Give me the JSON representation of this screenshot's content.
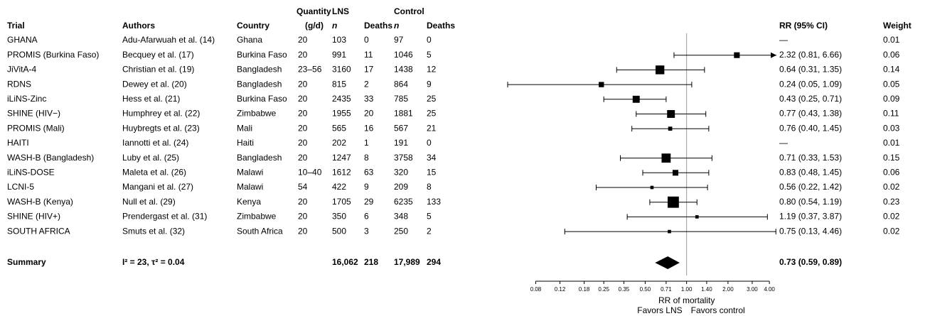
{
  "chart_data": {
    "type": "forest",
    "header": {
      "quantity": "Quantity",
      "lns": "LNS",
      "control": "Control",
      "trial": "Trial",
      "authors": "Authors",
      "country": "Country",
      "unit": "(g/d)",
      "n": "n",
      "deaths": "Deaths",
      "rr": "RR (95% CI)",
      "weight": "Weight"
    },
    "rows": [
      {
        "trial": "GHANA",
        "authors": "Adu-Afarwuah et al. (14)",
        "country": "Ghana",
        "quantity": 20,
        "lns_n": 103,
        "lns_deaths": 0,
        "control_n": 97,
        "control_deaths": 0,
        "rr": null,
        "lower": null,
        "upper": null,
        "rr_label": "—",
        "weight": 0.01
      },
      {
        "trial": "PROMIS (Burkina Faso)",
        "authors": "Becquey et al. (17)",
        "country": "Burkina Faso",
        "quantity": 20,
        "lns_n": 991,
        "lns_deaths": 11,
        "control_n": 1046,
        "control_deaths": 5,
        "rr": 2.32,
        "lower": 0.81,
        "upper": 6.66,
        "rr_label": "2.32 (0.81, 6.66)",
        "weight": 0.06
      },
      {
        "trial": "JiVitA-4",
        "authors": "Christian et al. (19)",
        "country": "Bangladesh",
        "quantity": "23–56",
        "lns_n": 3160,
        "lns_deaths": 17,
        "control_n": 1438,
        "control_deaths": 12,
        "rr": 0.64,
        "lower": 0.31,
        "upper": 1.35,
        "rr_label": "0.64 (0.31, 1.35)",
        "weight": 0.14
      },
      {
        "trial": "RDNS",
        "authors": "Dewey et al. (20)",
        "country": "Bangladesh",
        "quantity": 20,
        "lns_n": 815,
        "lns_deaths": 2,
        "control_n": 864,
        "control_deaths": 9,
        "rr": 0.24,
        "lower": 0.05,
        "upper": 1.09,
        "rr_label": "0.24 (0.05, 1.09)",
        "weight": 0.05
      },
      {
        "trial": "iLiNS-Zinc",
        "authors": "Hess et al. (21)",
        "country": "Burkina Faso",
        "quantity": 20,
        "lns_n": 2435,
        "lns_deaths": 33,
        "control_n": 785,
        "control_deaths": 25,
        "rr": 0.43,
        "lower": 0.25,
        "upper": 0.71,
        "rr_label": "0.43 (0.25, 0.71)",
        "weight": 0.09
      },
      {
        "trial": "SHINE (HIV−)",
        "authors": "Humphrey et al. (22)",
        "country": "Zimbabwe",
        "quantity": 20,
        "lns_n": 1955,
        "lns_deaths": 20,
        "control_n": 1881,
        "control_deaths": 25,
        "rr": 0.77,
        "lower": 0.43,
        "upper": 1.38,
        "rr_label": "0.77 (0.43, 1.38)",
        "weight": 0.11
      },
      {
        "trial": "PROMIS (Mali)",
        "authors": "Huybregts et al. (23)",
        "country": "Mali",
        "quantity": 20,
        "lns_n": 565,
        "lns_deaths": 16,
        "control_n": 567,
        "control_deaths": 21,
        "rr": 0.76,
        "lower": 0.4,
        "upper": 1.45,
        "rr_label": "0.76 (0.40, 1.45)",
        "weight": 0.03
      },
      {
        "trial": "HAITI",
        "authors": "Iannotti et al. (24)",
        "country": "Haiti",
        "quantity": 20,
        "lns_n": 202,
        "lns_deaths": 1,
        "control_n": 191,
        "control_deaths": 0,
        "rr": null,
        "lower": null,
        "upper": null,
        "rr_label": "—",
        "weight": 0.01
      },
      {
        "trial": "WASH-B (Bangladesh)",
        "authors": "Luby et al. (25)",
        "country": "Bangladesh",
        "quantity": 20,
        "lns_n": 1247,
        "lns_deaths": 8,
        "control_n": 3758,
        "control_deaths": 34,
        "rr": 0.71,
        "lower": 0.33,
        "upper": 1.53,
        "rr_label": "0.71 (0.33, 1.53)",
        "weight": 0.15
      },
      {
        "trial": "iLiNS-DOSE",
        "authors": "Maleta et al. (26)",
        "country": "Malawi",
        "quantity": "10–40",
        "lns_n": 1612,
        "lns_deaths": 63,
        "control_n": 320,
        "control_deaths": 15,
        "rr": 0.83,
        "lower": 0.48,
        "upper": 1.45,
        "rr_label": "0.83 (0.48, 1.45)",
        "weight": 0.06
      },
      {
        "trial": "LCNI-5",
        "authors": "Mangani et al. (27)",
        "country": "Malawi",
        "quantity": 54,
        "lns_n": 422,
        "lns_deaths": 9,
        "control_n": 209,
        "control_deaths": 8,
        "rr": 0.56,
        "lower": 0.22,
        "upper": 1.42,
        "rr_label": "0.56 (0.22, 1.42)",
        "weight": 0.02
      },
      {
        "trial": "WASH-B (Kenya)",
        "authors": "Null et al. (29)",
        "country": "Kenya",
        "quantity": 20,
        "lns_n": 1705,
        "lns_deaths": 29,
        "control_n": 6235,
        "control_deaths": 133,
        "rr": 0.8,
        "lower": 0.54,
        "upper": 1.19,
        "rr_label": "0.80 (0.54, 1.19)",
        "weight": 0.23
      },
      {
        "trial": "SHINE (HIV+)",
        "authors": "Prendergast et al. (31)",
        "country": "Zimbabwe",
        "quantity": 20,
        "lns_n": 350,
        "lns_deaths": 6,
        "control_n": 348,
        "control_deaths": 5,
        "rr": 1.19,
        "lower": 0.37,
        "upper": 3.87,
        "rr_label": "1.19 (0.37, 3.87)",
        "weight": 0.02
      },
      {
        "trial": "SOUTH AFRICA",
        "authors": "Smuts et al. (32)",
        "country": "South Africa",
        "quantity": 20,
        "lns_n": 500,
        "lns_deaths": 3,
        "control_n": 250,
        "control_deaths": 2,
        "rr": 0.75,
        "lower": 0.13,
        "upper": 4.46,
        "rr_label": "0.75 (0.13, 4.46)",
        "weight": 0.02
      }
    ],
    "summary": {
      "label": "Summary",
      "heterogeneity": "I² = 23, τ² = 0.04",
      "lns_n": "16,062",
      "lns_deaths": 218,
      "control_n": "17,989",
      "control_deaths": 294,
      "rr": 0.73,
      "lower": 0.59,
      "upper": 0.89,
      "rr_label": "0.73 (0.59, 0.89)"
    },
    "xlabel": "RR of mortality",
    "favors_left": "Favors LNS",
    "favors_right": "Favors control",
    "log_x": true,
    "reference": 1,
    "xlim": [
      0.05,
      4.5
    ],
    "xticks": [
      0.08,
      0.12,
      0.18,
      0.25,
      0.35,
      {
        "value": 0.5,
        "label": "0.50"
      },
      0.71,
      {
        "value": 1,
        "label": "1.00"
      },
      {
        "value": 1.4,
        "label": "1.40"
      },
      {
        "value": 2,
        "label": "2.00"
      },
      {
        "value": 3,
        "label": "3.00"
      },
      {
        "value": 4,
        "label": "4.00"
      }
    ],
    "color": "#000000"
  }
}
